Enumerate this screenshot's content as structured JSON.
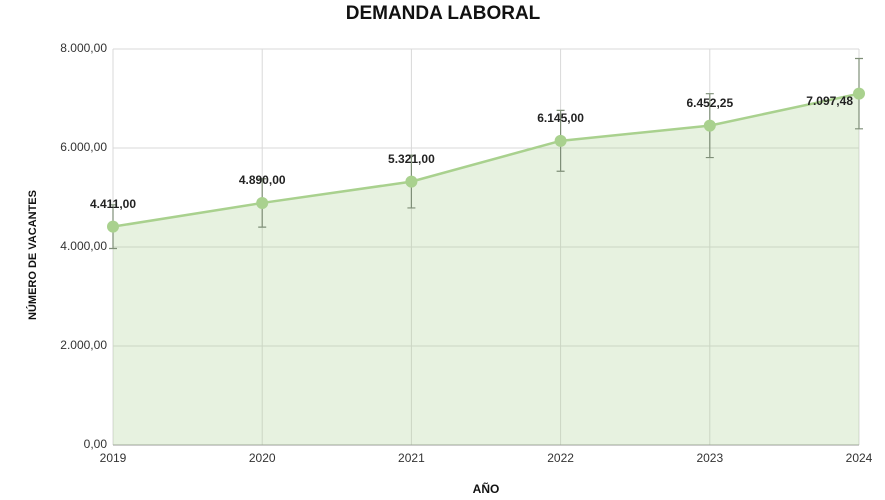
{
  "chart_data": {
    "type": "area",
    "title": "DEMANDA LABORAL",
    "x_label": "AÑO",
    "y_label": "NÚMERO DE VACANTES",
    "x": [
      2019,
      2020,
      2021,
      2022,
      2023,
      2024
    ],
    "xlim": [
      2019,
      2024
    ],
    "xticks": [
      2019,
      2020,
      2021,
      2022,
      2023,
      2024
    ],
    "ylim": [
      0,
      8000
    ],
    "yticks": [
      {
        "value": 0,
        "label": "0,00"
      },
      {
        "value": 2000,
        "label": "2.000,00"
      },
      {
        "value": 4000,
        "label": "4.000,00"
      },
      {
        "value": 6000,
        "label": "6.000,00"
      },
      {
        "value": 8000,
        "label": "8.000,00"
      }
    ],
    "grid": true,
    "series": [
      {
        "color": "#a9d18e",
        "values": [
          4411,
          4890,
          5321,
          6145,
          6452.25,
          7097.48
        ],
        "value_labels": [
          "4.411,00",
          "4.890,00",
          "5.321,00",
          "6.145,00",
          "6.452,25",
          "7.097,48"
        ],
        "errors": [
          441,
          489,
          532,
          615,
          645,
          710
        ]
      }
    ]
  }
}
